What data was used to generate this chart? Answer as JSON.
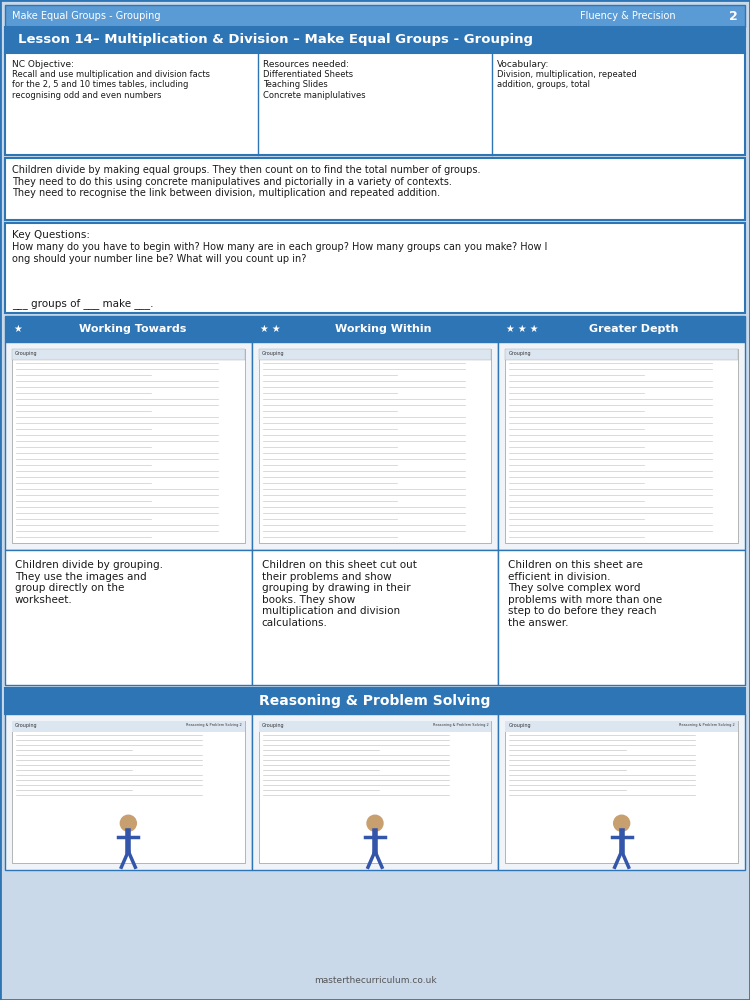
{
  "header_bg": "#5b9bd5",
  "page_bg": "#c9d9ea",
  "border_color": "#2e75b6",
  "section_blue": "#2e75b6",
  "white": "#ffffff",
  "dark_text": "#1a1a1a",
  "header_left": "Make Equal Groups - Grouping",
  "header_right": "Fluency & Precision",
  "header_num": "2",
  "lesson_title": "Lesson 14– Multiplication & Division – Make Equal Groups - Grouping",
  "nc_objective_title": "NC Objective:",
  "nc_objective_body": "Recall and use multiplication and division facts\nfor the 2, 5 and 10 times tables, including\nrecognising odd and even numbers",
  "resources_title": "Resources needed:",
  "resources_body": "Differentiated Sheets\nTeaching Slides\nConcrete maniplulatives",
  "vocabulary_title": "Vocabulary:",
  "vocabulary_body": "Division, multiplication, repeated\naddition, groups, total",
  "info_text": "Children divide by making equal groups. They then count on to find the total number of groups.\nThey need to do this using concrete manipulatives and pictorially in a variety of contexts.\nThey need to recognise the link between division, multiplication and repeated addition.",
  "key_questions_title": "Key Questions:",
  "key_questions_body": "How many do you have to begin with? How many are in each group? How many groups can you make? How l\nong should your number line be? What will you count up in?",
  "key_questions_formula": "___ groups of ___ make ___.",
  "working_towards": "Working Towards",
  "working_within": "Working Within",
  "greater_depth": "Greater Depth",
  "wt_desc": "Children divide by grouping.\nThey use the images and\ngroup directly on the\nworksheet.",
  "ww_desc": "Children on this sheet cut out\ntheir problems and show\ngrouping by drawing in their\nbooks. They show\nmultiplication and division\ncalculations.",
  "gd_desc": "Children on this sheet are\nefficient in division.\nThey solve complex word\nproblems with more than one\nstep to do before they reach\nthe answer.",
  "reasoning_title": "Reasoning & Problem Solving",
  "footer_text": "masterthecurriculum.co.uk"
}
